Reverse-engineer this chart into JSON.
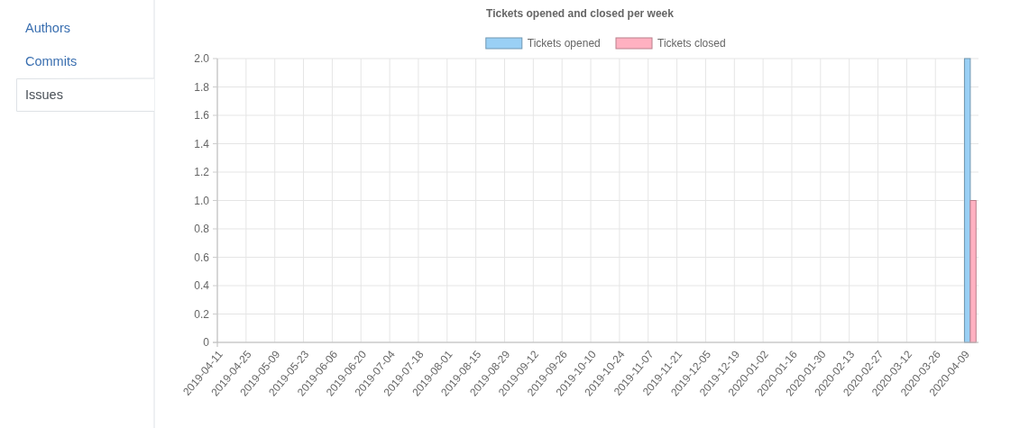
{
  "chart_data": [
    {
      "type": "other",
      "annotations": [
        "Authors",
        "Commits",
        "Issues"
      ]
    },
    {
      "type": "bar",
      "title": "Tickets opened and closed per week",
      "x": [
        "2020-04-12"
      ],
      "series": [
        {
          "name": "Tickets opened",
          "color": "#9ad0f5",
          "values": [
            2
          ]
        },
        {
          "name": "Tickets closed",
          "color": "#ffb1c1",
          "values": [
            1
          ]
        }
      ],
      "xlim": [
        "2019-04-11",
        "2020-04-16"
      ],
      "xticks": [
        "2019-04-11",
        "2019-04-25",
        "2019-05-09",
        "2019-05-23",
        "2019-06-06",
        "2019-06-20",
        "2019-07-04",
        "2019-07-18",
        "2019-08-01",
        "2019-08-15",
        "2019-08-29",
        "2019-09-12",
        "2019-09-26",
        "2019-10-10",
        "2019-10-24",
        "2019-11-07",
        "2019-11-21",
        "2019-12-05",
        "2019-12-19",
        "2020-01-02",
        "2020-01-16",
        "2020-01-30",
        "2020-02-13",
        "2020-02-27",
        "2020-03-12",
        "2020-03-26",
        "2020-04-09"
      ],
      "ylim": [
        0,
        2
      ],
      "yticks": [
        0,
        0.2,
        0.4,
        0.6,
        0.8,
        {
          "value": 1,
          "label": "1.0"
        },
        1.2,
        1.4,
        1.6,
        1.8,
        {
          "value": 2,
          "label": "2.0"
        }
      ],
      "grid": true,
      "legend": "top"
    }
  ]
}
